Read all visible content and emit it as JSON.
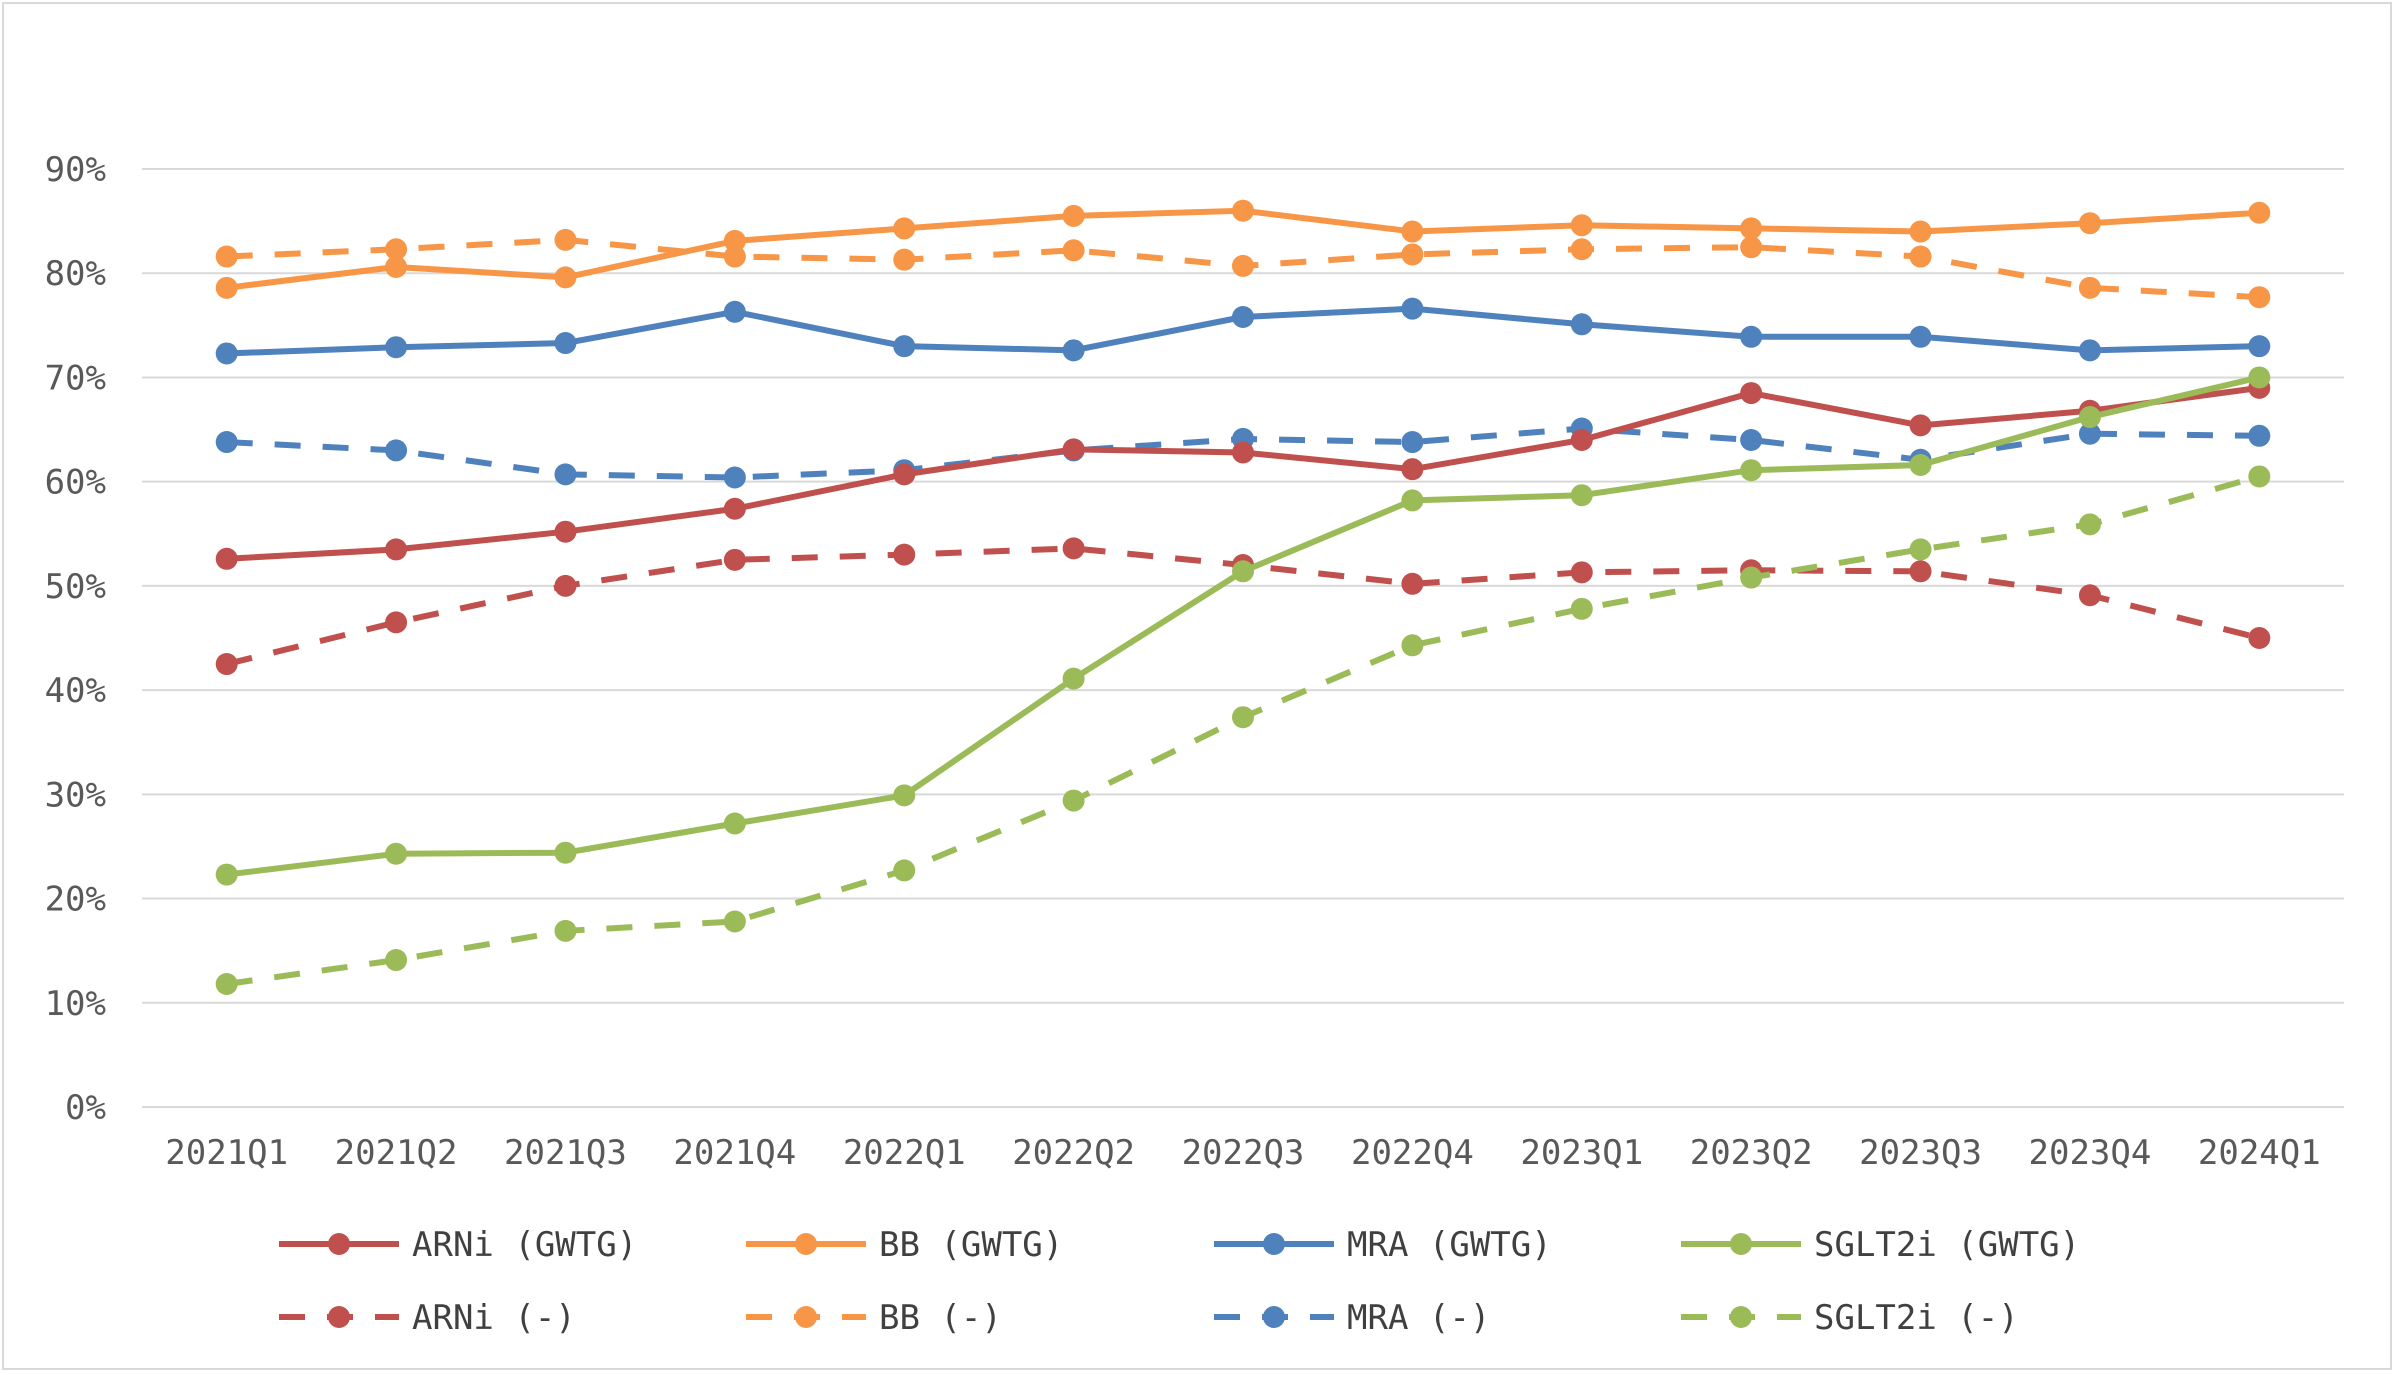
{
  "chart_data": {
    "type": "line",
    "title": "",
    "xlabel": "",
    "ylabel": "",
    "ylim": [
      0,
      90
    ],
    "yticks": [
      0,
      10,
      20,
      30,
      40,
      50,
      60,
      70,
      80,
      90
    ],
    "ytick_labels": [
      "0%",
      "10%",
      "20%",
      "30%",
      "40%",
      "50%",
      "60%",
      "70%",
      "80%",
      "90%"
    ],
    "grid": true,
    "legend_position": "bottom",
    "categories": [
      "2021Q1",
      "2021Q2",
      "2021Q3",
      "2021Q4",
      "2022Q1",
      "2022Q2",
      "2022Q3",
      "2022Q4",
      "2023Q1",
      "2023Q2",
      "2023Q3",
      "2023Q4",
      "2024Q1"
    ],
    "series": [
      {
        "name": "ARNi (GWTG)",
        "color": "#c0504d",
        "dash": false,
        "values": [
          52.6,
          53.5,
          55.2,
          57.4,
          60.7,
          63.1,
          62.8,
          61.2,
          64.0,
          68.5,
          65.4,
          66.8,
          69.0
        ]
      },
      {
        "name": "BB (GWTG)",
        "color": "#f79646",
        "dash": false,
        "values": [
          78.6,
          80.6,
          79.6,
          83.1,
          84.3,
          85.5,
          86.0,
          84.0,
          84.6,
          84.3,
          84.0,
          84.8,
          85.8
        ]
      },
      {
        "name": "MRA (GWTG)",
        "color": "#4f81bd",
        "dash": false,
        "values": [
          72.3,
          72.9,
          73.3,
          76.3,
          73.0,
          72.6,
          75.8,
          76.6,
          75.1,
          73.9,
          73.9,
          72.6,
          73.0
        ]
      },
      {
        "name": "SGLT2i (GWTG)",
        "color": "#9bbb59",
        "dash": false,
        "values": [
          22.3,
          24.3,
          24.4,
          27.2,
          29.9,
          41.1,
          51.4,
          58.2,
          58.7,
          61.1,
          61.6,
          66.2,
          70.0
        ]
      },
      {
        "name": "ARNi (-)",
        "color": "#c0504d",
        "dash": true,
        "values": [
          42.5,
          46.5,
          50.0,
          52.5,
          53.0,
          53.6,
          52.0,
          50.2,
          51.3,
          51.5,
          51.4,
          49.1,
          45.0
        ]
      },
      {
        "name": "BB (-)",
        "color": "#f79646",
        "dash": true,
        "values": [
          81.6,
          82.3,
          83.2,
          81.6,
          81.3,
          82.2,
          80.7,
          81.8,
          82.3,
          82.5,
          81.6,
          78.6,
          77.7
        ]
      },
      {
        "name": "MRA (-)",
        "color": "#4f81bd",
        "dash": true,
        "values": [
          63.8,
          63.0,
          60.7,
          60.4,
          61.1,
          63.0,
          64.1,
          63.8,
          65.1,
          64.0,
          62.1,
          64.6,
          64.4
        ]
      },
      {
        "name": "SGLT2i (-)",
        "color": "#9bbb59",
        "dash": true,
        "values": [
          11.8,
          14.1,
          16.9,
          17.8,
          22.7,
          29.4,
          37.4,
          44.3,
          47.8,
          50.8,
          53.5,
          55.9,
          60.5
        ]
      }
    ]
  }
}
